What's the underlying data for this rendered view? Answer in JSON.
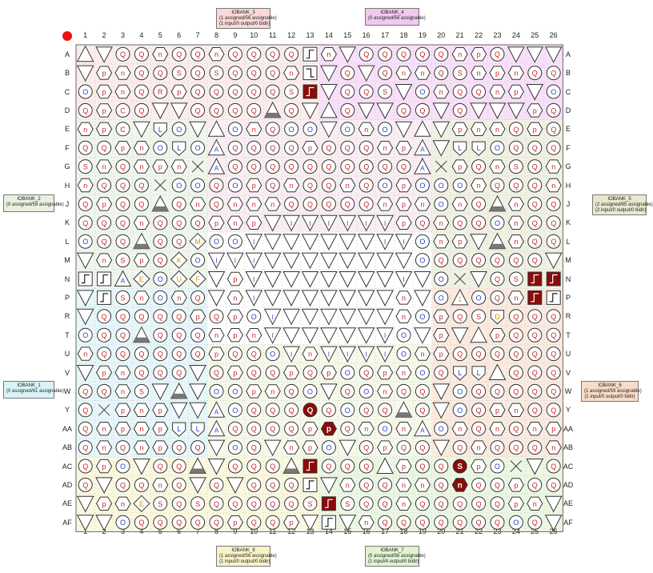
{
  "columns": [
    "1",
    "2",
    "3",
    "4",
    "5",
    "6",
    "7",
    "8",
    "9",
    "10",
    "11",
    "12",
    "13",
    "14",
    "15",
    "16",
    "17",
    "18",
    "19",
    "20",
    "21",
    "22",
    "23",
    "24",
    "25",
    "26"
  ],
  "rows": [
    "A",
    "B",
    "C",
    "D",
    "E",
    "F",
    "G",
    "H",
    "J",
    "K",
    "L",
    "M",
    "N",
    "P",
    "R",
    "T",
    "U",
    "V",
    "W",
    "Y",
    "AA",
    "AB",
    "AC",
    "AD",
    "AE",
    "AF"
  ],
  "banks": [
    {
      "id": "bank3",
      "lines": [
        "IOBANK_3",
        "(1 assigned/56 assignable)",
        "(1 input/0 output/0 bidir)"
      ],
      "color": "#f8d8d8",
      "zone": "#f9dede"
    },
    {
      "id": "bank4",
      "lines": [
        "IOBANK_4",
        "(0 assigned/56 assignable)"
      ],
      "color": "#f0c8f0",
      "zone": "#f2c9f2"
    },
    {
      "id": "bank2",
      "lines": [
        "IOBANK_2",
        "(0 assigned/59 assignable)"
      ],
      "color": "#e8f0e0",
      "zone": "#e4efdc"
    },
    {
      "id": "bank5",
      "lines": [
        "IOBANK_5",
        "(2 assigned/65 assignable)",
        "(2 input/0 output/0 bidir)"
      ],
      "color": "#e8e8d0",
      "zone": "#e6e6cc"
    },
    {
      "id": "bank1",
      "lines": [
        "IOBANK_1",
        "(0 assigned/61 assignable)"
      ],
      "color": "#d8f4f8",
      "zone": "#d4eef4"
    },
    {
      "id": "bank6",
      "lines": [
        "IOBANK_6",
        "(1 assigned/59 assignable)",
        "(1 input/0 output/0 bidir)"
      ],
      "color": "#f8dcc8",
      "zone": "#f6d8c4"
    },
    {
      "id": "bank8",
      "lines": [
        "IOBANK_8",
        "(1 assigned/56 assignable)",
        "(1 input/0 output/0 bidir)"
      ],
      "color": "#f8f4c8",
      "zone": "#f6f2c4"
    },
    {
      "id": "bank7",
      "lines": [
        "IOBANK_7",
        "(5 assigned/56 assignable)",
        "(1 input/4 output/0 bidir)"
      ],
      "color": "#e0f4d0",
      "zone": "#dcf0cc"
    }
  ],
  "pins": [
    "TvQQnQQnQQQQSnvQQQQQnpQvvv",
    "vpnQQSQSQQQnSvQvQnnQSnpnQQ",
    "OpnQRpQQQQQSSvQQSvOnQQnpvO",
    "QpCQvvQQQQTQvTQvvQQvQvvvpQ",
    "npCvLOvTOnQOOvOnOvTvpnnQpQ",
    "QQpnOLOAQQQQpQQQnpAvLLOQQQ",
    "SnQnpnxAQQQQQQQQQQAxpQnSQn",
    "nQQQxOOQOpQnQQnQOpOOOnQQQn",
    "QpQQTQnQnnnQQQQQnpnOnQTnQQ",
    "QQQnQQQpnpvIIIIIIpQnQQOnQQ",
    "OQQTQQMOOIvvvvvvIIOnpvTnQQ",
    "vnSpQKOIIIvvvvvvvvOQQQQQQv",
    "HHAEOUFvpIvvvvvvvIvOxvQSHH",
    "vHSnOnQvnIvvvvvvvnvO1OQnHH",
    "vQQQQQpQpOIvvvvvvnOpQSDQQQ",
    "OQQTQQQnpnIvvvvvIOvpvTpQQQ",
    "nQQQQQQpQQOInIIIIOnpQQQQQQ",
    "vpnQQQvQpQQpQpOQpnOQLLTQQQ",
    "QQnSvTvOOpnQOvQOnQQvOQQQQQ",
    "QxpnpvvAOQQQQQOQQTQvOQpnQQ",
    "QnpnpLLAQQQQpQQnOnAOnQnQnp",
    "QnQnpQQvOQvnpOvQpQQvQnQQQn",
    "QpOvQQTvQQQTHQQQTpQQSpOxvQ",
    "QvQQnQvQvQQQHvnQQnnQnQQpQQ",
    "vpnESQSQQQQQSHSQQnQQQQQpnv",
    "vvOQQQQQpQQpvHvnQQQQQQQOQv"
  ],
  "special": {
    "A13": "step-up",
    "B13": "step-down",
    "C13": "step-dark",
    "N1": "step-up",
    "N2": "step-up",
    "P2": "step-up",
    "N25": "step-dark",
    "N26": "step-dark",
    "P25": "step-dark",
    "P26": "step-up",
    "Y13": "Q-dark",
    "AA14": "p-dark",
    "AC13": "step-dark",
    "AD13": "step-up",
    "AE14": "step-dark",
    "AF14": "step-up",
    "AC21": "S-dark",
    "AD21": "n-dark"
  },
  "grey_triangles": [
    "D11",
    "D16",
    "E7",
    "E20",
    "J5",
    "J23",
    "L4",
    "L23",
    "T4",
    "T21",
    "V22",
    "W6",
    "Y18",
    "AC7",
    "AC12",
    "AC16"
  ]
}
